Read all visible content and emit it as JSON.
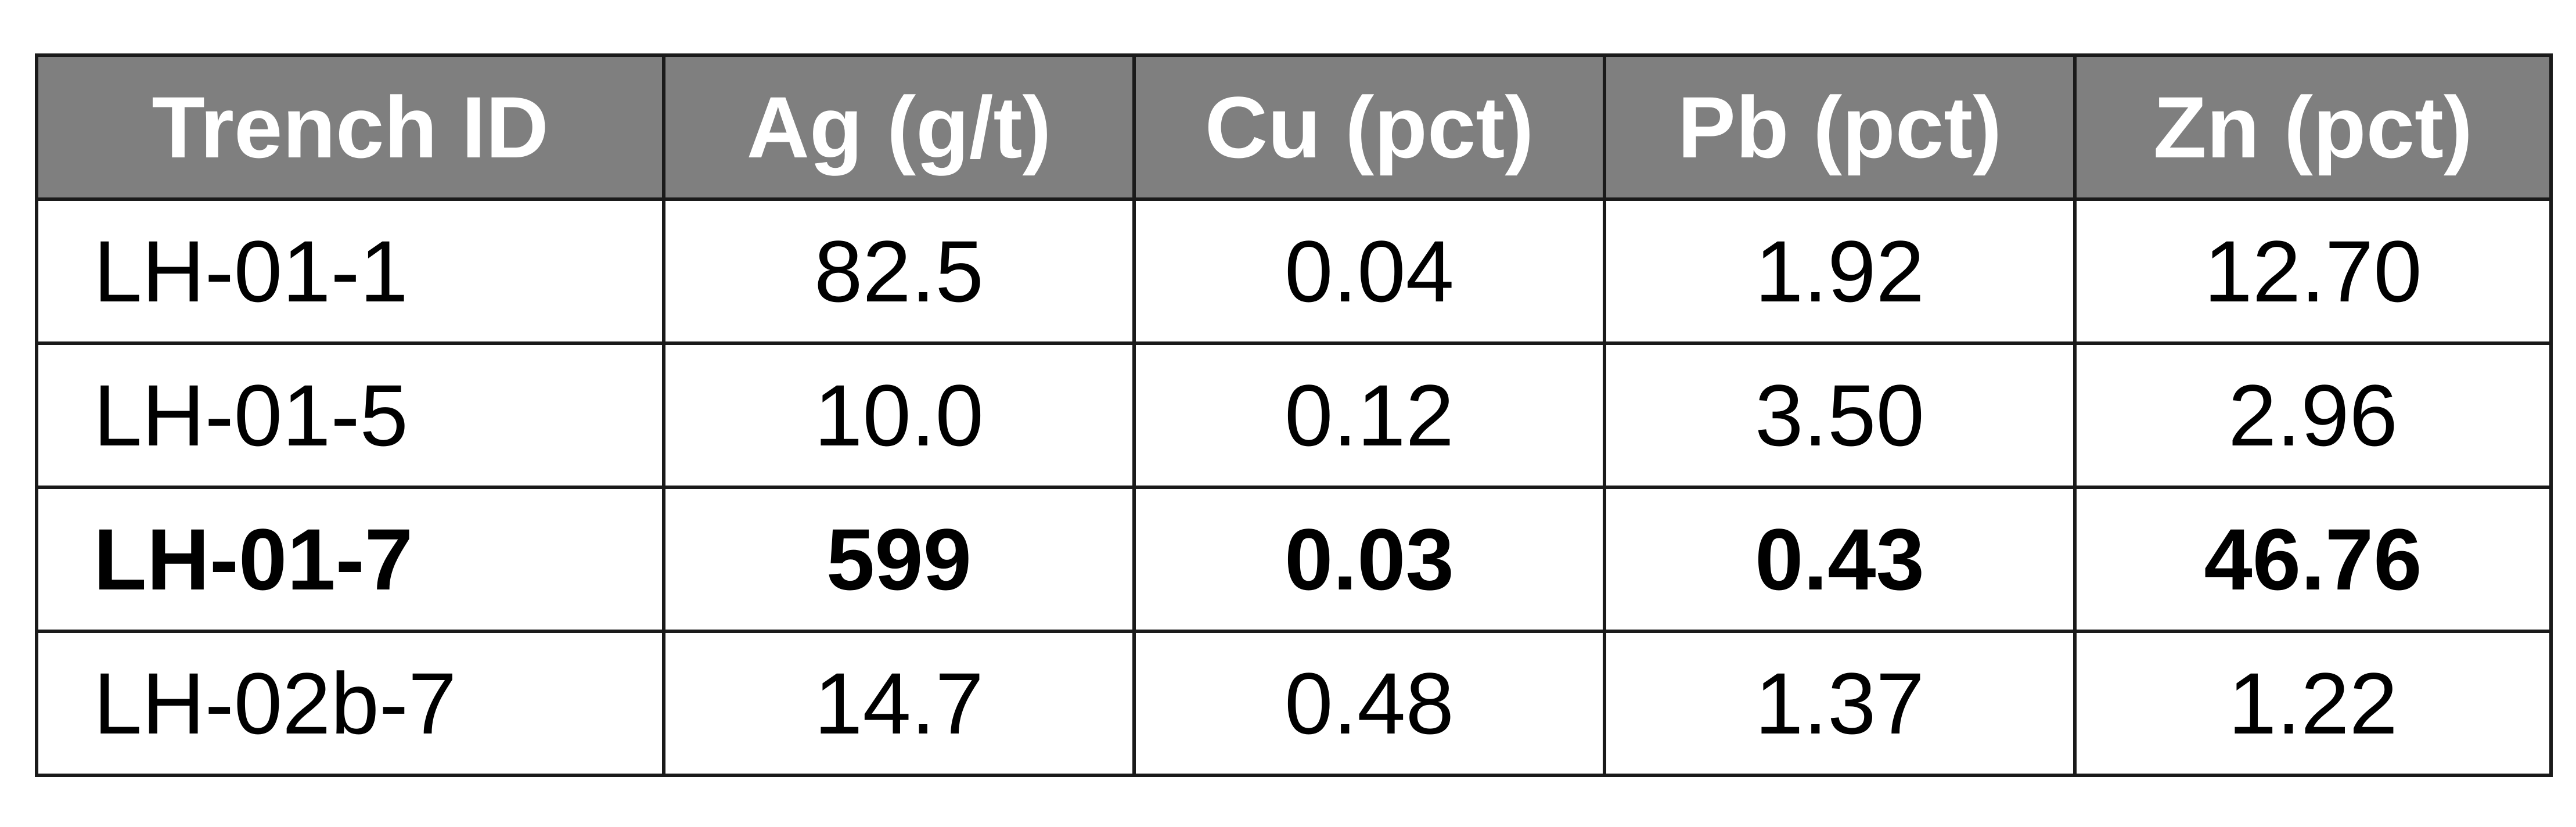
{
  "table": {
    "headers": [
      "Trench ID",
      "Ag (g/t)",
      "Cu (pct)",
      "Pb (pct)",
      "Zn (pct)"
    ],
    "rows": [
      {
        "trench_id": "LH-01-1",
        "ag": "82.5",
        "cu": "0.04",
        "pb": "1.92",
        "zn": "12.70",
        "bold": false
      },
      {
        "trench_id": "LH-01-5",
        "ag": "10.0",
        "cu": "0.12",
        "pb": "3.50",
        "zn": "2.96",
        "bold": false
      },
      {
        "trench_id": "LH-01-7",
        "ag": "599",
        "cu": "0.03",
        "pb": "0.43",
        "zn": "46.76",
        "bold": true
      },
      {
        "trench_id": "LH-02b-7",
        "ag": "14.7",
        "cu": "0.48",
        "pb": "1.37",
        "zn": "1.22",
        "bold": false
      }
    ]
  },
  "colors": {
    "header_background": "#7f7f7f",
    "header_text": "#ffffff",
    "border": "#1a1a1a",
    "body_text": "#000000"
  }
}
